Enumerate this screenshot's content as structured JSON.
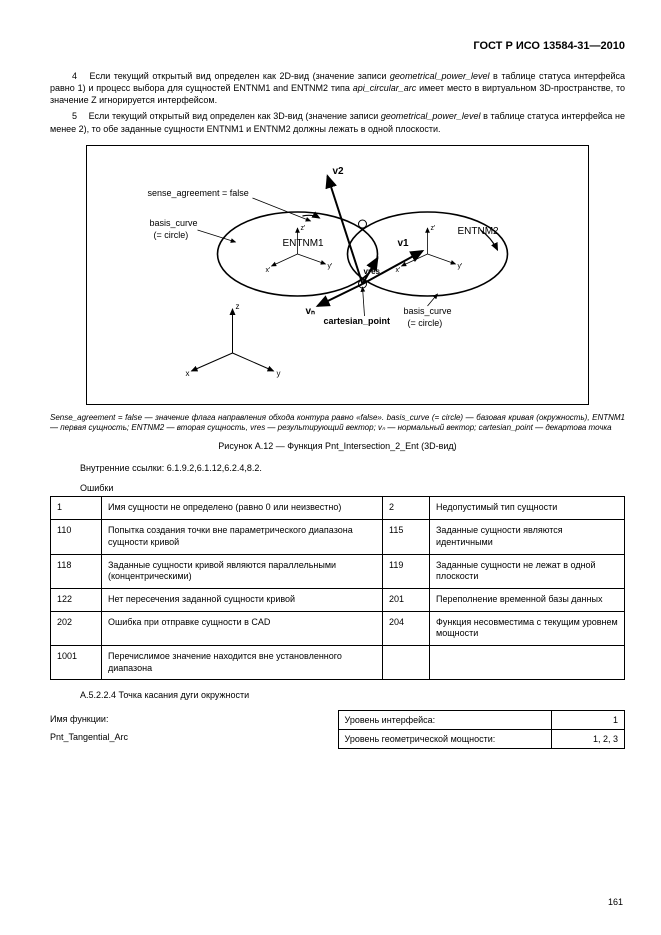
{
  "header": {
    "doc_id": "ГОСТ Р ИСО 13584-31—2010"
  },
  "paragraphs": {
    "p4_num": "4",
    "p4_text": "Если текущий открытый вид определен как 2D-вид (значение записи geometrical_power_level в таблице статуса интерфейса равно 1) и процесс выбора для сущностей ENTNM1 and ENTNM2 типа api_circular_arc имеет место в виртуальном 3D-пространстве, то значение Z игнорируется интерфейсом.",
    "p5_num": "5",
    "p5_text": "Если текущий открытый вид определен как 3D-вид (значение записи geometrical_power_level в таблице статуса интерфейса не менее 2), то обе заданные сущности ENTNM1 и ENTNM2 должны лежать в одной плоскости."
  },
  "figure": {
    "labels": {
      "sense_agreement": "sense_agreement = false",
      "basis_curve_left": "basis_curve",
      "basis_curve_left2": "(= circle)",
      "entnm1": "ENTNM1",
      "entnm2": "ENTNM2",
      "v1": "v1",
      "v2": "v2",
      "vn": "vₙ",
      "vres": "vres",
      "cartesian_point": "cartesian_point",
      "basis_curve_right": "basis_curve",
      "basis_curve_right2": "(= circle)",
      "axis_x": "x",
      "axis_y": "y",
      "axis_z": "z"
    },
    "caption_italic": "Sense_agreement = false — значение флага направления обхода контура равно «false». basis_curve (= circle) — базовая кривая (окружность), ENTNM1 — первая сущность; ENTNM2 — вторая сущность, vres — результирующий вектор; vₙ — нормальный вектор; cartesian_point — декартова точка",
    "title": "Рисунок А.12 — Функция Pnt_Intersection_2_Ent (3D-вид)"
  },
  "internal_links": "Внутренние ссылки: 6.1.9.2,6.1.12,6.2.4,8.2.",
  "errors": {
    "label": "Ошибки",
    "rows": [
      {
        "c1": "1",
        "d1": "Имя сущности не определено (равно 0 или неизвестно)",
        "c2": "2",
        "d2": "Недопустимый тип сущности"
      },
      {
        "c1": "110",
        "d1": "Попытка создания точки вне параметрического диапазона сущности кривой",
        "c2": "115",
        "d2": "Заданные сущности являются идентичными"
      },
      {
        "c1": "118",
        "d1": "Заданные сущности кривой являются параллельными (концентрическими)",
        "c2": "119",
        "d2": "Заданные сущности не лежат в одной плоскости"
      },
      {
        "c1": "122",
        "d1": "Нет пересечения заданной сущности кривой",
        "c2": "201",
        "d2": "Переполнение временной базы данных"
      },
      {
        "c1": "202",
        "d1": "Ошибка при отправке сущности в CAD",
        "c2": "204",
        "d2": "Функция несовместима с текущим уровнем мощности"
      },
      {
        "c1": "1001",
        "d1": "Перечислимое значение находится вне установленного диапазона",
        "c2": "",
        "d2": ""
      }
    ]
  },
  "section": "А.5.2.2.4 Точка касания дуги окружности",
  "function": {
    "name_label": "Имя функции:",
    "name_value": "Pnt_Tangential_Arc",
    "level_if_label": "Уровень интерфейса:",
    "level_if_value": "1",
    "level_geom_label": "Уровень геометрической мощности:",
    "level_geom_value": "1, 2, 3"
  },
  "page_number": "161"
}
